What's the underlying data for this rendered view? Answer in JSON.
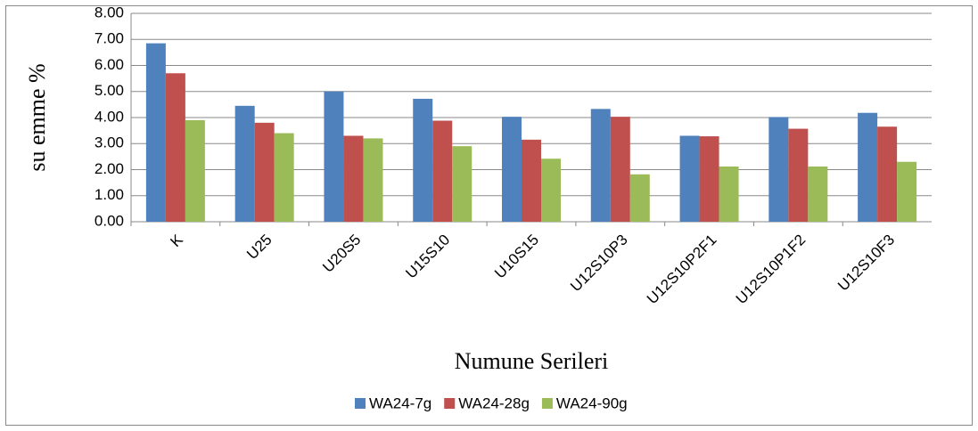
{
  "chart_data": {
    "type": "bar",
    "y_label": "su emme %",
    "x_label": "Numune Serileri",
    "categories": [
      "K",
      "U25",
      "U20S5",
      "U15S10",
      "U10S15",
      "U12S10P3",
      "U12S10P2F1",
      "U12S10P1F2",
      "U12S10F3"
    ],
    "series": [
      {
        "name": "WA24-7g",
        "color": "#4f81bd",
        "values": [
          6.85,
          4.45,
          5.0,
          4.72,
          4.03,
          4.33,
          3.3,
          4.02,
          4.18
        ]
      },
      {
        "name": "WA24-28g",
        "color": "#c0504d",
        "values": [
          5.7,
          3.8,
          3.3,
          3.88,
          3.15,
          4.03,
          3.28,
          3.57,
          3.65
        ]
      },
      {
        "name": "WA24-90g",
        "color": "#9bbb59",
        "values": [
          3.9,
          3.4,
          3.2,
          2.9,
          2.42,
          1.82,
          2.12,
          2.12,
          2.3
        ]
      }
    ],
    "ylim": [
      0,
      8
    ],
    "yticks": [
      {
        "value": 0,
        "label": "0.00"
      },
      {
        "value": 1,
        "label": "1.00"
      },
      {
        "value": 2,
        "label": "2.00"
      },
      {
        "value": 3,
        "label": "3.00"
      },
      {
        "value": 4,
        "label": "4.00"
      },
      {
        "value": 5,
        "label": "5.00"
      },
      {
        "value": 6,
        "label": "6.00"
      },
      {
        "value": 7,
        "label": "7.00"
      },
      {
        "value": 8,
        "label": "8.00"
      }
    ],
    "grid": true,
    "legend": "bottom"
  }
}
